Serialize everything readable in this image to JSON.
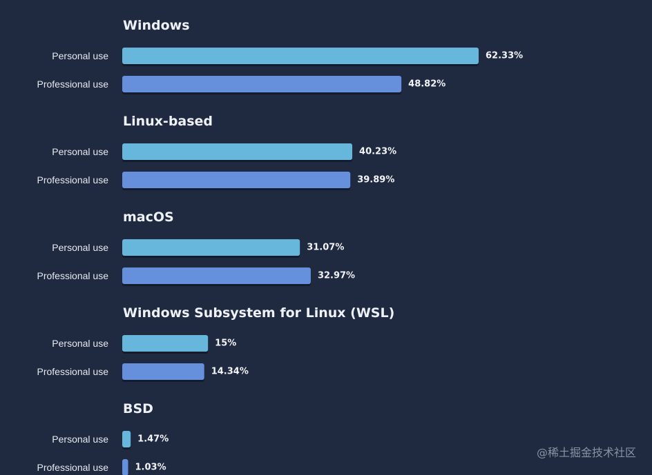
{
  "chart_data": {
    "type": "bar",
    "orientation": "horizontal",
    "xlim": [
      0,
      100
    ],
    "grid": false,
    "series": [
      {
        "name": "Personal use",
        "color": "#67b6dc"
      },
      {
        "name": "Professional use",
        "color": "#6690dc"
      }
    ],
    "groups": [
      {
        "title": "Windows",
        "rows": [
          {
            "label": "Personal use",
            "value": 62.33,
            "display": "62.33%"
          },
          {
            "label": "Professional use",
            "value": 48.82,
            "display": "48.82%"
          }
        ]
      },
      {
        "title": "Linux-based",
        "rows": [
          {
            "label": "Personal use",
            "value": 40.23,
            "display": "40.23%"
          },
          {
            "label": "Professional use",
            "value": 39.89,
            "display": "39.89%"
          }
        ]
      },
      {
        "title": "macOS",
        "rows": [
          {
            "label": "Personal use",
            "value": 31.07,
            "display": "31.07%"
          },
          {
            "label": "Professional use",
            "value": 32.97,
            "display": "32.97%"
          }
        ]
      },
      {
        "title": "Windows Subsystem for Linux (WSL)",
        "rows": [
          {
            "label": "Personal use",
            "value": 15,
            "display": "15%"
          },
          {
            "label": "Professional use",
            "value": 14.34,
            "display": "14.34%"
          }
        ]
      },
      {
        "title": "BSD",
        "rows": [
          {
            "label": "Personal use",
            "value": 1.47,
            "display": "1.47%"
          },
          {
            "label": "Professional use",
            "value": 1.03,
            "display": "1.03%"
          }
        ]
      }
    ]
  },
  "watermark": "@稀土掘金技术社区",
  "colors": {
    "background": "#1f2940",
    "personal": "#67b6dc",
    "professional": "#6690dc"
  }
}
